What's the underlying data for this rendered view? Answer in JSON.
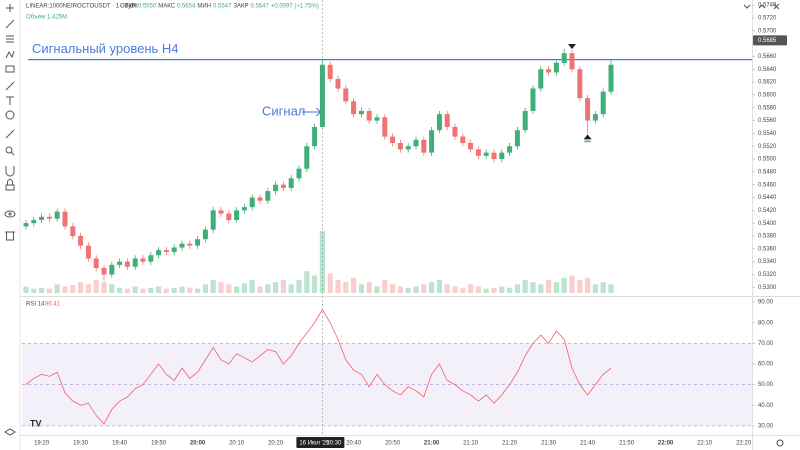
{
  "chart_data": {
    "type": "candlestick",
    "symbol": "LINEAR:1000NEIROCTOUSDT · 1 · Bybit",
    "ohlc_legend": [
      "ОТКР",
      "0.5550",
      "МАКС",
      "0.5654",
      "МИН",
      "0.5547",
      "ЗАКР",
      "0.5647",
      "+0.0097 (+1.75%)"
    ],
    "volume_legend": [
      "Объём",
      "1.425M"
    ],
    "up_color": "#3fae78",
    "down_color": "#ee7373",
    "open": [
      0.5395,
      0.54,
      0.5405,
      0.541,
      0.5407,
      0.5418,
      0.5395,
      0.538,
      0.5365,
      0.5345,
      0.533,
      0.532,
      0.5335,
      0.534,
      0.5332,
      0.5345,
      0.534,
      0.535,
      0.5358,
      0.5355,
      0.5362,
      0.5368,
      0.5365,
      0.5375,
      0.539,
      0.542,
      0.5415,
      0.5405,
      0.542,
      0.5425,
      0.544,
      0.5435,
      0.545,
      0.546,
      0.5455,
      0.547,
      0.5485,
      0.552,
      0.555,
      0.5647,
      0.5625,
      0.561,
      0.559,
      0.557,
      0.5575,
      0.556,
      0.5565,
      0.5535,
      0.5525,
      0.5515,
      0.552,
      0.553,
      0.551,
      0.5545,
      0.557,
      0.555,
      0.5535,
      0.5525,
      0.5515,
      0.5505,
      0.551,
      0.55,
      0.551,
      0.552,
      0.5545,
      0.5575,
      0.561,
      0.564,
      0.5635,
      0.565,
      0.5665,
      0.564,
      0.5595,
      0.556,
      0.557,
      0.5605
    ],
    "high": [
      0.5405,
      0.541,
      0.5415,
      0.5415,
      0.5423,
      0.5423,
      0.54,
      0.5385,
      0.537,
      0.535,
      0.5335,
      0.534,
      0.5345,
      0.5345,
      0.535,
      0.535,
      0.5355,
      0.5363,
      0.5363,
      0.5367,
      0.5373,
      0.5373,
      0.538,
      0.5395,
      0.5425,
      0.5425,
      0.542,
      0.5425,
      0.543,
      0.5445,
      0.5445,
      0.5455,
      0.5465,
      0.5465,
      0.5475,
      0.549,
      0.5525,
      0.5555,
      0.5654,
      0.5652,
      0.563,
      0.5615,
      0.5595,
      0.558,
      0.558,
      0.557,
      0.557,
      0.554,
      0.553,
      0.5525,
      0.5535,
      0.5535,
      0.555,
      0.5575,
      0.5575,
      0.5555,
      0.554,
      0.553,
      0.552,
      0.5515,
      0.5515,
      0.5515,
      0.5525,
      0.555,
      0.558,
      0.5615,
      0.5645,
      0.5645,
      0.5655,
      0.5672,
      0.567,
      0.5645,
      0.56,
      0.5575,
      0.561,
      0.5654
    ],
    "low": [
      0.539,
      0.5395,
      0.54,
      0.5402,
      0.5402,
      0.539,
      0.5375,
      0.536,
      0.534,
      0.5325,
      0.531,
      0.5315,
      0.533,
      0.5327,
      0.5327,
      0.5335,
      0.5335,
      0.5345,
      0.535,
      0.535,
      0.5357,
      0.536,
      0.536,
      0.537,
      0.5385,
      0.541,
      0.54,
      0.54,
      0.5415,
      0.542,
      0.543,
      0.543,
      0.5445,
      0.545,
      0.545,
      0.5465,
      0.548,
      0.5515,
      0.5547,
      0.562,
      0.5605,
      0.5585,
      0.5565,
      0.5565,
      0.5555,
      0.5555,
      0.553,
      0.552,
      0.551,
      0.551,
      0.5515,
      0.5505,
      0.5505,
      0.554,
      0.5545,
      0.553,
      0.552,
      0.551,
      0.55,
      0.55,
      0.5495,
      0.5495,
      0.5505,
      0.5515,
      0.554,
      0.557,
      0.5605,
      0.563,
      0.563,
      0.5645,
      0.5635,
      0.559,
      0.554,
      0.5555,
      0.5565,
      0.56
    ],
    "close": [
      0.54,
      0.5405,
      0.541,
      0.5407,
      0.5418,
      0.5395,
      0.538,
      0.5365,
      0.5345,
      0.533,
      0.532,
      0.5335,
      0.534,
      0.5332,
      0.5345,
      0.534,
      0.535,
      0.5358,
      0.5355,
      0.5362,
      0.5368,
      0.5365,
      0.5375,
      0.539,
      0.542,
      0.5415,
      0.5405,
      0.542,
      0.5425,
      0.544,
      0.5435,
      0.545,
      0.546,
      0.5455,
      0.547,
      0.5485,
      0.552,
      0.555,
      0.5647,
      0.5625,
      0.561,
      0.559,
      0.557,
      0.5575,
      0.556,
      0.5565,
      0.5535,
      0.5525,
      0.5515,
      0.552,
      0.553,
      0.551,
      0.5545,
      0.557,
      0.555,
      0.5535,
      0.5525,
      0.5515,
      0.5505,
      0.551,
      0.55,
      0.551,
      0.552,
      0.5545,
      0.5575,
      0.561,
      0.564,
      0.5635,
      0.565,
      0.5665,
      0.564,
      0.5595,
      0.556,
      0.557,
      0.5605,
      0.5647
    ],
    "volume": [
      0.15,
      0.1,
      0.12,
      0.1,
      0.2,
      0.15,
      0.18,
      0.25,
      0.2,
      0.3,
      0.25,
      0.2,
      0.12,
      0.1,
      0.15,
      0.1,
      0.12,
      0.15,
      0.1,
      0.12,
      0.15,
      0.12,
      0.1,
      0.2,
      0.3,
      0.25,
      0.2,
      0.15,
      0.22,
      0.3,
      0.15,
      0.2,
      0.25,
      0.3,
      0.2,
      0.3,
      0.5,
      0.4,
      1.425,
      0.45,
      0.3,
      0.25,
      0.35,
      0.2,
      0.25,
      0.15,
      0.3,
      0.2,
      0.15,
      0.12,
      0.15,
      0.2,
      0.25,
      0.3,
      0.2,
      0.15,
      0.12,
      0.2,
      0.15,
      0.1,
      0.12,
      0.15,
      0.12,
      0.2,
      0.3,
      0.25,
      0.2,
      0.3,
      0.25,
      0.35,
      0.4,
      0.3,
      0.35,
      0.2,
      0.25,
      0.2
    ],
    "ylim": [
      0.5288,
      0.5748
    ],
    "yticks": [
      {
        "value": 0.53,
        "label": "0.5300"
      },
      {
        "value": 0.532,
        "label": "0.5320"
      },
      {
        "value": 0.534,
        "label": "0.5340"
      },
      {
        "value": 0.536,
        "label": "0.5360"
      },
      {
        "value": 0.538,
        "label": "0.5380"
      },
      {
        "value": 0.54,
        "label": "0.5400"
      },
      {
        "value": 0.542,
        "label": "0.5420"
      },
      {
        "value": 0.544,
        "label": "0.5440"
      },
      {
        "value": 0.546,
        "label": "0.5460"
      },
      {
        "value": 0.548,
        "label": "0.5480"
      },
      {
        "value": 0.55,
        "label": "0.5500"
      },
      {
        "value": 0.552,
        "label": "0.5520"
      },
      {
        "value": 0.554,
        "label": "0.5540"
      },
      {
        "value": 0.556,
        "label": "0.5560"
      },
      {
        "value": 0.558,
        "label": "0.5580"
      },
      {
        "value": 0.56,
        "label": "0.5600"
      },
      {
        "value": 0.562,
        "label": "0.5620"
      },
      {
        "value": 0.564,
        "label": "0.5640"
      },
      {
        "value": 0.566,
        "label": "0.5660"
      },
      {
        "value": 0.568,
        "label": "0.5680"
      },
      {
        "value": 0.57,
        "label": "0.5700"
      },
      {
        "value": 0.572,
        "label": "0.5720"
      },
      {
        "value": 0.574,
        "label": "0.5740"
      }
    ],
    "price_marker": 0.5685,
    "signal_level": {
      "value": 0.5655,
      "label": "Сигнальный уровень H4",
      "color": "#4a7bdc"
    },
    "signal_note": "Сигнал",
    "time_labels": [
      "19:20",
      "19:30",
      "19:40",
      "19:50",
      "20:00",
      "20:10",
      "20:20",
      "20:30",
      "20:40",
      "20:50",
      "21:00",
      "21:10",
      "21:20",
      "21:30",
      "21:40",
      "21:50",
      "22:00",
      "22:10",
      "22:20"
    ],
    "crosshair_date": "16 Июл '25",
    "rsi": {
      "name": "RSI 14",
      "current": "86.41",
      "color": "#f0606a",
      "values": [
        50,
        53,
        55,
        54,
        56,
        46,
        42,
        40,
        41,
        35,
        31,
        38,
        42,
        44,
        48,
        50,
        55,
        60,
        55,
        52,
        58,
        53,
        56,
        62,
        68,
        62,
        60,
        65,
        63,
        61,
        64,
        67,
        66,
        60,
        64,
        70,
        75,
        80,
        86.41,
        80,
        72,
        62,
        57,
        55,
        49,
        55,
        50,
        47,
        45,
        49,
        47,
        44,
        55,
        60,
        52,
        50,
        47,
        45,
        42,
        45,
        41,
        45,
        50,
        56,
        64,
        70,
        74,
        70,
        76,
        72,
        58,
        50,
        45,
        50,
        55,
        58
      ],
      "ylim": [
        28,
        92
      ],
      "yticks": [
        {
          "value": 30,
          "label": "30.00"
        },
        {
          "value": 40,
          "label": "40.00"
        },
        {
          "value": 50,
          "label": "50.00"
        },
        {
          "value": 60,
          "label": "60.00"
        },
        {
          "value": 70,
          "label": "70.00"
        },
        {
          "value": 80,
          "label": "80.00"
        },
        {
          "value": 90,
          "label": "90.00"
        }
      ],
      "band": [
        30,
        70
      ],
      "midline": 50
    }
  }
}
